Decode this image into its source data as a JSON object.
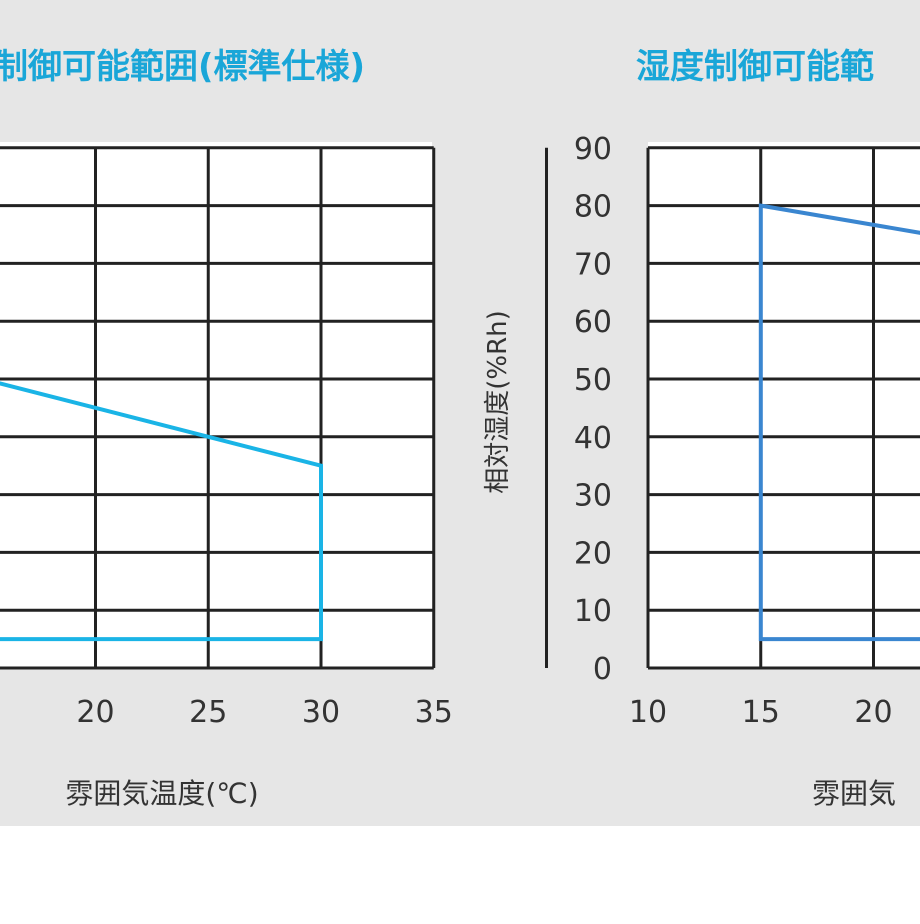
{
  "colors": {
    "panel_bg": "#e6e6e6",
    "page_bg": "#ffffff",
    "title": "#1aa6d8",
    "grid": "#222222",
    "tick_text": "#333333",
    "series_left": "#1ab4e6",
    "series_right": "#3a86d0"
  },
  "chart_data": [
    {
      "type": "line",
      "title": "制御可能範囲(標準仕様)",
      "xlabel": "雰囲気温度(℃)",
      "ylabel": "",
      "xlim": [
        15,
        35
      ],
      "ylim": [
        0,
        90
      ],
      "xticks": [
        "20",
        "25",
        "30",
        "35"
      ],
      "yticks": [],
      "grid": true,
      "series": [
        {
          "x": [
            15,
            25,
            30,
            30,
            15
          ],
          "y": [
            50,
            40,
            35,
            5,
            5
          ]
        }
      ]
    },
    {
      "type": "line",
      "title": "湿度制御可能範",
      "xlabel": "雰囲気",
      "ylabel": "相対湿度(%Rh)",
      "xlim": [
        10,
        35
      ],
      "ylim": [
        0,
        90
      ],
      "xticks": [
        "10",
        "15",
        "20"
      ],
      "yticks": [
        "0",
        "10",
        "20",
        "30",
        "40",
        "50",
        "60",
        "70",
        "80",
        "90"
      ],
      "grid": true,
      "series": [
        {
          "x": [
            22.5,
            15,
            15,
            22.5
          ],
          "y": [
            75,
            80,
            5,
            5
          ]
        }
      ]
    }
  ]
}
